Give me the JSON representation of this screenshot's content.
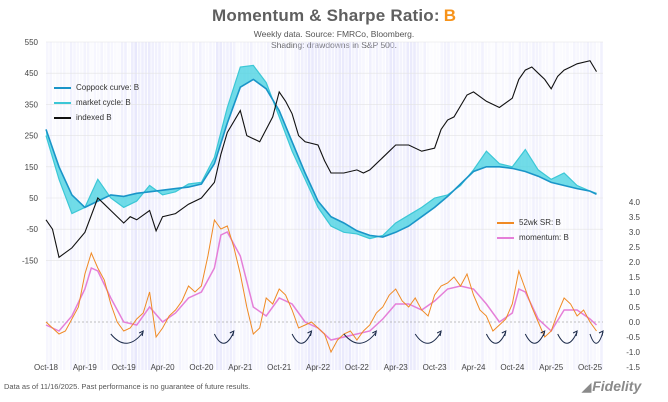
{
  "header": {
    "title": "Momentum & Sharpe Ratio:",
    "btc_symbol": "B",
    "subtitle_lines": [
      "Weekly data.  Source: FMRCo, Bloomberg.",
      "Shading: drawdowns in S&P 500."
    ]
  },
  "footer": {
    "note": "Data as of 11/16/2025. Past performance is no guarantee of future results.",
    "logo_text": "Fidelity"
  },
  "colors": {
    "coppock": "#1a95c8",
    "market_cycle": "#3cc7d6",
    "market_cycle_fill": "#43d2e0",
    "indexed": "#111111",
    "sr": "#f08a24",
    "momentum": "#e57fd8",
    "shading": "#dcdcfa"
  },
  "chart_data": [
    {
      "type": "line",
      "panel": "upper",
      "yaxis": "left",
      "ylim": [
        -200,
        550
      ],
      "yticks": [
        -150,
        -50,
        50,
        150,
        250,
        350,
        450,
        550
      ],
      "ytick_labels": [
        "-150",
        "-50",
        "50",
        "150",
        "250",
        "350",
        "450",
        "550"
      ],
      "xlim": [
        "2018-10",
        "2025-12"
      ],
      "xticks": [
        {
          "date": "2018-10",
          "label": "Oct-18"
        },
        {
          "date": "2019-04",
          "label": "Apr-19"
        },
        {
          "date": "2019-10",
          "label": "Oct-19"
        },
        {
          "date": "2020-04",
          "label": "Apr-20"
        },
        {
          "date": "2020-10",
          "label": "Oct-20"
        },
        {
          "date": "2021-04",
          "label": "Apr-21"
        },
        {
          "date": "2021-10",
          "label": "Oct-21"
        },
        {
          "date": "2022-04",
          "label": "Apr-22"
        },
        {
          "date": "2022-10",
          "label": "Oct-22"
        },
        {
          "date": "2023-04",
          "label": "Apr-23"
        },
        {
          "date": "2023-10",
          "label": "Oct-23"
        },
        {
          "date": "2024-04",
          "label": "Apr-24"
        },
        {
          "date": "2024-10",
          "label": "Oct-24"
        },
        {
          "date": "2025-04",
          "label": "Apr-25"
        },
        {
          "date": "2025-10",
          "label": "Oct-25"
        }
      ],
      "legend": [
        "Coppock curve: B",
        "market cycle: B",
        "indexed B"
      ],
      "legend_position": "upper-left",
      "band": "fill between Coppock curve and market cycle",
      "series": [
        {
          "name": "Coppock curve: B",
          "x": [
            "2018-10",
            "2018-12",
            "2019-02",
            "2019-04",
            "2019-06",
            "2019-08",
            "2019-10",
            "2019-12",
            "2020-02",
            "2020-04",
            "2020-06",
            "2020-08",
            "2020-10",
            "2020-12",
            "2021-02",
            "2021-04",
            "2021-06",
            "2021-08",
            "2021-10",
            "2021-12",
            "2022-02",
            "2022-04",
            "2022-06",
            "2022-08",
            "2022-10",
            "2022-12",
            "2023-02",
            "2023-04",
            "2023-06",
            "2023-08",
            "2023-10",
            "2023-12",
            "2024-02",
            "2024-04",
            "2024-06",
            "2024-08",
            "2024-10",
            "2024-12",
            "2025-02",
            "2025-04",
            "2025-06",
            "2025-08",
            "2025-10",
            "2025-11"
          ],
          "y": [
            270,
            150,
            60,
            20,
            40,
            60,
            55,
            65,
            70,
            75,
            80,
            85,
            95,
            160,
            290,
            405,
            430,
            400,
            330,
            230,
            130,
            40,
            -10,
            -30,
            -55,
            -70,
            -75,
            -60,
            -40,
            -10,
            20,
            55,
            95,
            135,
            150,
            150,
            145,
            135,
            120,
            100,
            90,
            80,
            72,
            62
          ]
        },
        {
          "name": "market cycle: B",
          "x": [
            "2018-10",
            "2018-12",
            "2019-02",
            "2019-04",
            "2019-06",
            "2019-08",
            "2019-10",
            "2019-12",
            "2020-02",
            "2020-04",
            "2020-06",
            "2020-08",
            "2020-10",
            "2020-12",
            "2021-02",
            "2021-04",
            "2021-06",
            "2021-08",
            "2021-10",
            "2021-12",
            "2022-02",
            "2022-04",
            "2022-06",
            "2022-08",
            "2022-10",
            "2022-12",
            "2023-02",
            "2023-04",
            "2023-06",
            "2023-08",
            "2023-10",
            "2023-12",
            "2024-02",
            "2024-04",
            "2024-06",
            "2024-08",
            "2024-10",
            "2024-12",
            "2025-02",
            "2025-04",
            "2025-06",
            "2025-08",
            "2025-10",
            "2025-11"
          ],
          "y": [
            250,
            110,
            0,
            20,
            110,
            50,
            20,
            40,
            90,
            60,
            70,
            95,
            100,
            180,
            340,
            470,
            475,
            420,
            310,
            200,
            110,
            20,
            -40,
            -60,
            -65,
            -80,
            -70,
            -30,
            -5,
            20,
            50,
            60,
            90,
            140,
            200,
            160,
            150,
            205,
            140,
            110,
            130,
            90,
            72,
            65
          ]
        },
        {
          "name": "indexed B",
          "x": [
            "2018-10",
            "2018-11",
            "2018-12",
            "2019-02",
            "2019-04",
            "2019-06",
            "2019-07",
            "2019-08",
            "2019-10",
            "2019-11",
            "2019-12",
            "2020-02",
            "2020-03",
            "2020-04",
            "2020-06",
            "2020-08",
            "2020-10",
            "2020-12",
            "2021-01",
            "2021-02",
            "2021-04",
            "2021-05",
            "2021-06",
            "2021-07",
            "2021-09",
            "2021-10",
            "2021-11",
            "2021-12",
            "2022-01",
            "2022-02",
            "2022-04",
            "2022-05",
            "2022-06",
            "2022-08",
            "2022-10",
            "2022-11",
            "2022-12",
            "2023-01",
            "2023-03",
            "2023-04",
            "2023-06",
            "2023-08",
            "2023-10",
            "2023-11",
            "2023-12",
            "2024-01",
            "2024-03",
            "2024-04",
            "2024-06",
            "2024-08",
            "2024-10",
            "2024-11",
            "2024-12",
            "2025-01",
            "2025-02",
            "2025-03",
            "2025-04",
            "2025-05",
            "2025-06",
            "2025-07",
            "2025-08",
            "2025-10",
            "2025-11"
          ],
          "y": [
            -20,
            -50,
            -140,
            -110,
            -60,
            50,
            30,
            10,
            -30,
            -10,
            -20,
            10,
            -55,
            -10,
            0,
            30,
            50,
            100,
            190,
            260,
            330,
            250,
            240,
            230,
            310,
            390,
            360,
            320,
            250,
            230,
            220,
            170,
            130,
            130,
            140,
            130,
            140,
            160,
            200,
            220,
            220,
            200,
            210,
            270,
            300,
            310,
            380,
            390,
            360,
            340,
            370,
            430,
            460,
            470,
            450,
            430,
            400,
            440,
            460,
            470,
            480,
            490,
            455
          ]
        }
      ]
    },
    {
      "type": "line",
      "panel": "lower",
      "yaxis": "right",
      "ylim": [
        -1.6,
        4.0
      ],
      "yticks": [
        -1.5,
        -1.0,
        -0.5,
        0.0,
        0.5,
        1.0,
        1.5,
        2.0,
        2.5,
        3.0,
        3.5,
        4.0
      ],
      "ytick_labels": [
        "-1.5",
        "-1.0",
        "-0.5",
        "0.0",
        "0.5",
        "1.0",
        "1.5",
        "2.0",
        "2.5",
        "3.0",
        "3.5",
        "4.0"
      ],
      "reference_line": 0,
      "legend": [
        "52wk SR: B",
        "momentum: B"
      ],
      "legend_position": "upper-center",
      "annotations": "curved arrows marking momentum troughs",
      "series": [
        {
          "name": "52wk SR: B",
          "x": [
            "2018-10",
            "2018-12",
            "2019-01",
            "2019-03",
            "2019-04",
            "2019-05",
            "2019-06",
            "2019-07",
            "2019-08",
            "2019-09",
            "2019-10",
            "2019-11",
            "2019-12",
            "2020-01",
            "2020-02",
            "2020-03",
            "2020-04",
            "2020-05",
            "2020-06",
            "2020-07",
            "2020-08",
            "2020-09",
            "2020-10",
            "2020-11",
            "2020-12",
            "2021-01",
            "2021-02",
            "2021-03",
            "2021-04",
            "2021-05",
            "2021-06",
            "2021-07",
            "2021-08",
            "2021-09",
            "2021-10",
            "2021-11",
            "2021-12",
            "2022-01",
            "2022-02",
            "2022-03",
            "2022-04",
            "2022-05",
            "2022-06",
            "2022-07",
            "2022-08",
            "2022-09",
            "2022-10",
            "2022-11",
            "2022-12",
            "2023-01",
            "2023-02",
            "2023-03",
            "2023-04",
            "2023-05",
            "2023-06",
            "2023-07",
            "2023-08",
            "2023-09",
            "2023-10",
            "2023-11",
            "2023-12",
            "2024-01",
            "2024-02",
            "2024-03",
            "2024-04",
            "2024-05",
            "2024-06",
            "2024-07",
            "2024-08",
            "2024-09",
            "2024-10",
            "2024-11",
            "2024-12",
            "2025-01",
            "2025-02",
            "2025-03",
            "2025-04",
            "2025-05",
            "2025-06",
            "2025-07",
            "2025-08",
            "2025-09",
            "2025-10",
            "2025-11"
          ],
          "y": [
            0.0,
            -0.4,
            -0.3,
            0.5,
            1.6,
            2.3,
            1.8,
            1.4,
            0.6,
            0.0,
            -0.3,
            -0.2,
            0.1,
            0.3,
            1.0,
            -0.5,
            -0.2,
            0.2,
            0.4,
            0.7,
            1.2,
            1.0,
            1.2,
            2.2,
            3.4,
            3.1,
            3.2,
            2.5,
            1.6,
            0.5,
            -0.4,
            -0.2,
            0.8,
            0.6,
            1.1,
            0.9,
            0.4,
            -0.2,
            -0.1,
            0.0,
            -0.2,
            -0.4,
            -1.0,
            -0.6,
            -0.4,
            -0.3,
            -0.6,
            -0.3,
            -0.1,
            0.3,
            0.5,
            0.9,
            1.1,
            0.7,
            0.5,
            0.8,
            0.4,
            0.2,
            0.9,
            1.2,
            1.3,
            1.5,
            1.2,
            1.6,
            0.9,
            0.4,
            0.2,
            -0.3,
            -0.1,
            0.1,
            0.6,
            1.7,
            1.1,
            0.5,
            0.0,
            -0.5,
            -0.3,
            0.3,
            0.8,
            0.6,
            0.2,
            0.4,
            0.0,
            -0.3
          ]
        },
        {
          "name": "momentum: B",
          "x": [
            "2018-10",
            "2018-12",
            "2019-02",
            "2019-04",
            "2019-05",
            "2019-06",
            "2019-08",
            "2019-10",
            "2019-12",
            "2020-02",
            "2020-04",
            "2020-06",
            "2020-08",
            "2020-10",
            "2020-12",
            "2021-01",
            "2021-02",
            "2021-04",
            "2021-06",
            "2021-08",
            "2021-10",
            "2021-12",
            "2022-02",
            "2022-04",
            "2022-06",
            "2022-08",
            "2022-10",
            "2022-12",
            "2023-02",
            "2023-04",
            "2023-06",
            "2023-08",
            "2023-10",
            "2023-12",
            "2024-02",
            "2024-04",
            "2024-06",
            "2024-08",
            "2024-10",
            "2024-11",
            "2024-12",
            "2025-02",
            "2025-04",
            "2025-06",
            "2025-08",
            "2025-10",
            "2025-11"
          ],
          "y": [
            -0.1,
            -0.3,
            0.2,
            1.1,
            1.8,
            1.7,
            0.8,
            0.0,
            -0.1,
            0.5,
            0.0,
            0.3,
            0.8,
            1.0,
            1.8,
            2.9,
            3.0,
            2.2,
            0.5,
            0.2,
            0.8,
            0.6,
            0.0,
            -0.2,
            -0.6,
            -0.5,
            -0.4,
            -0.3,
            0.1,
            0.6,
            0.6,
            0.4,
            0.7,
            1.1,
            1.2,
            1.1,
            0.6,
            0.0,
            0.3,
            1.1,
            1.0,
            0.1,
            -0.3,
            0.4,
            0.4,
            0.1,
            -0.1
          ]
        }
      ]
    }
  ]
}
